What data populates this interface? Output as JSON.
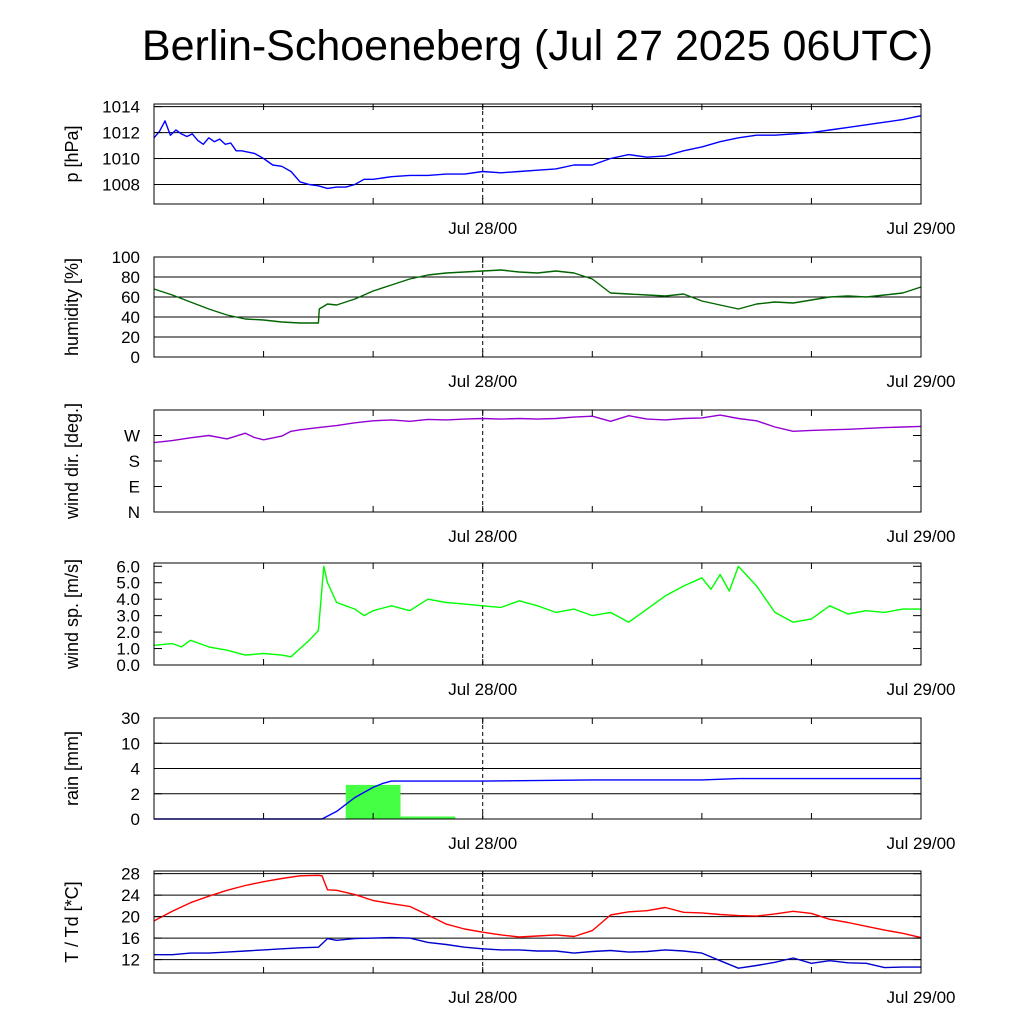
{
  "title": "Berlin-Schoeneberg (Jul 27 2025 06UTC)",
  "x_axis": {
    "start": "Jul 27 06UTC",
    "end": "Jul 29 00UTC",
    "tick_labels": [
      {
        "label": "Jul 28/00",
        "hour": 18
      },
      {
        "label": "Jul 29/00",
        "hour": 42
      }
    ],
    "reference_line_hour": 18
  },
  "colors": {
    "pressure": "#0000ff",
    "humidity": "#006400",
    "wind_dir": "#9400d3",
    "wind_speed": "#00ff00",
    "rain_bar": "#44ff44",
    "rain_cumulative": "#0000ff",
    "temperature": "#ff0000",
    "dewpoint": "#0000cc"
  },
  "chart_data": [
    {
      "type": "line",
      "id": "pressure",
      "ylabel": "p [hPa]",
      "ylim": [
        1006.5,
        1014.2
      ],
      "yticks": [
        1008,
        1010,
        1012,
        1014
      ],
      "ytick_labels": [
        "1008",
        "1010",
        "1012",
        "1014"
      ],
      "grid": "horizontal",
      "series": [
        {
          "color_key": "pressure",
          "x": [
            0,
            0.3,
            0.6,
            0.9,
            1.2,
            1.5,
            1.8,
            2.1,
            2.4,
            2.7,
            3.0,
            3.3,
            3.6,
            3.9,
            4.2,
            4.5,
            4.8,
            5.5,
            6,
            6.5,
            7,
            7.5,
            8,
            8.5,
            9,
            9.5,
            10,
            10.5,
            11,
            11.5,
            12,
            12.5,
            13,
            14,
            15,
            16,
            17,
            18,
            19,
            20,
            21,
            22,
            23,
            24,
            25,
            26,
            27,
            28,
            29,
            30,
            31,
            32,
            33,
            34,
            35,
            36,
            37,
            38,
            39,
            40,
            41,
            42
          ],
          "y": [
            1011.6,
            1012.1,
            1012.9,
            1011.8,
            1012.2,
            1011.9,
            1011.7,
            1011.9,
            1011.4,
            1011.1,
            1011.6,
            1011.3,
            1011.5,
            1011.1,
            1011.2,
            1010.6,
            1010.6,
            1010.4,
            1010.0,
            1009.5,
            1009.4,
            1009.0,
            1008.2,
            1008.0,
            1007.9,
            1007.7,
            1007.8,
            1007.8,
            1008.0,
            1008.4,
            1008.4,
            1008.5,
            1008.6,
            1008.7,
            1008.7,
            1008.8,
            1008.8,
            1009.0,
            1008.9,
            1009.0,
            1009.1,
            1009.2,
            1009.5,
            1009.5,
            1010.0,
            1010.3,
            1010.1,
            1010.2,
            1010.6,
            1010.9,
            1011.3,
            1011.6,
            1011.8,
            1011.8,
            1011.9,
            1012.0,
            1012.2,
            1012.4,
            1012.6,
            1012.8,
            1013.0,
            1013.3
          ]
        }
      ]
    },
    {
      "type": "line",
      "id": "humidity",
      "ylabel": "humidity [%]",
      "ylim": [
        0,
        100
      ],
      "yticks": [
        0,
        20,
        40,
        60,
        80,
        100
      ],
      "ytick_labels": [
        "0",
        "20",
        "40",
        "60",
        "80",
        "100"
      ],
      "grid": "horizontal",
      "series": [
        {
          "color_key": "humidity",
          "x": [
            0,
            1,
            2,
            3,
            4,
            5,
            6,
            7,
            8,
            8.5,
            9,
            9.05,
            9.5,
            10,
            11,
            12,
            13,
            14,
            15,
            16,
            17,
            18,
            19,
            20,
            21,
            22,
            23,
            24,
            25,
            26,
            27,
            28,
            29,
            30,
            31,
            32,
            33,
            34,
            35,
            36,
            37,
            38,
            39,
            40,
            41,
            42
          ],
          "y": [
            68,
            62,
            55,
            48,
            42,
            38,
            37,
            35,
            34,
            34,
            34,
            48,
            53,
            52,
            58,
            66,
            72,
            78,
            82,
            84,
            85,
            86,
            87,
            85,
            84,
            86,
            84,
            78,
            64,
            63,
            62,
            61,
            63,
            56,
            52,
            48,
            53,
            55,
            54,
            57,
            60,
            61,
            60,
            62,
            64,
            70
          ]
        }
      ]
    },
    {
      "type": "line",
      "id": "wind_dir",
      "ylabel": "wind dir. [deg.]",
      "ylim": [
        0,
        360
      ],
      "yticks": [
        0,
        90,
        180,
        270
      ],
      "ytick_labels": [
        "N",
        "E",
        "S",
        "W"
      ],
      "grid": "none",
      "series": [
        {
          "color_key": "wind_dir",
          "x": [
            0,
            1,
            2,
            3,
            4,
            5,
            5.5,
            6,
            7,
            7.5,
            8,
            9,
            10,
            11,
            12,
            13,
            14,
            15,
            16,
            17,
            18,
            19,
            20,
            21,
            22,
            23,
            24,
            25,
            26,
            27,
            28,
            29,
            30,
            31,
            32,
            33,
            34,
            35,
            36,
            37,
            38,
            39,
            40,
            41,
            42
          ],
          "y": [
            245,
            252,
            262,
            270,
            258,
            278,
            263,
            255,
            268,
            285,
            290,
            298,
            305,
            315,
            322,
            325,
            320,
            327,
            325,
            328,
            330,
            328,
            330,
            328,
            330,
            335,
            338,
            320,
            340,
            328,
            325,
            330,
            332,
            342,
            330,
            322,
            300,
            285,
            288,
            290,
            292,
            295,
            298,
            300,
            302
          ]
        }
      ]
    },
    {
      "type": "line",
      "id": "wind_speed",
      "ylabel": "wind sp. [m/s]",
      "ylim": [
        0,
        6.2
      ],
      "yticks": [
        0,
        1,
        2,
        3,
        4,
        5,
        6
      ],
      "ytick_labels": [
        "0.0",
        "1.0",
        "2.0",
        "3.0",
        "4.0",
        "5.0",
        "6.0"
      ],
      "grid": "none",
      "series": [
        {
          "color_key": "wind_speed",
          "x": [
            0,
            1,
            1.5,
            2,
            2.5,
            3,
            4,
            5,
            6,
            7,
            7.5,
            8,
            8.5,
            9,
            9.3,
            9.5,
            10,
            10.5,
            11,
            11.5,
            12,
            13,
            14,
            15,
            16,
            17,
            18,
            19,
            20,
            21,
            22,
            23,
            24,
            25,
            26,
            27,
            28,
            29,
            30,
            30.5,
            31,
            31.5,
            32,
            33,
            34,
            35,
            36,
            37,
            38,
            39,
            40,
            41,
            42
          ],
          "y": [
            1.2,
            1.3,
            1.1,
            1.5,
            1.3,
            1.1,
            0.9,
            0.6,
            0.7,
            0.6,
            0.5,
            1.0,
            1.5,
            2.1,
            6.0,
            5.0,
            3.8,
            3.6,
            3.4,
            3.0,
            3.3,
            3.6,
            3.3,
            4.0,
            3.8,
            3.7,
            3.6,
            3.5,
            3.9,
            3.6,
            3.2,
            3.4,
            3.0,
            3.2,
            2.6,
            3.4,
            4.2,
            4.8,
            5.3,
            4.6,
            5.5,
            4.5,
            6.0,
            4.8,
            3.2,
            2.6,
            2.8,
            3.6,
            3.1,
            3.3,
            3.2,
            3.4,
            3.4
          ]
        }
      ]
    },
    {
      "type": "bar+line",
      "id": "rain",
      "ylabel": "rain [mm]",
      "scale": "piecewise",
      "yticks": [
        0,
        2,
        4,
        10,
        30
      ],
      "ytick_labels": [
        "0",
        "2",
        "4",
        "10",
        "30"
      ],
      "grid": "horizontal",
      "bars": [
        {
          "x_start": 10.5,
          "x_end": 13.5,
          "value": 2.7
        },
        {
          "x_start": 13.5,
          "x_end": 16.5,
          "value": 0.2
        }
      ],
      "series": [
        {
          "color_key": "rain_cumulative",
          "x": [
            0,
            9.2,
            10,
            11,
            12,
            12.5,
            13,
            15,
            18,
            24,
            30,
            32,
            36,
            42
          ],
          "y": [
            0,
            0,
            0.6,
            1.7,
            2.5,
            2.8,
            3.0,
            3.0,
            3.0,
            3.1,
            3.1,
            3.2,
            3.2,
            3.2
          ]
        }
      ]
    },
    {
      "type": "line",
      "id": "temperature",
      "ylabel": "T / Td [*C]",
      "ylim": [
        9.5,
        28.5
      ],
      "yticks": [
        12,
        16,
        20,
        24,
        28
      ],
      "ytick_labels": [
        "12",
        "16",
        "20",
        "24",
        "28"
      ],
      "grid": "horizontal",
      "series": [
        {
          "color_key": "temperature",
          "x": [
            0,
            1,
            2,
            3,
            4,
            5,
            6,
            7,
            8,
            9,
            9.2,
            9.5,
            10,
            11,
            12,
            13,
            14,
            15,
            16,
            17,
            18,
            19,
            20,
            21,
            22,
            23,
            24,
            25,
            26,
            27,
            28,
            29,
            30,
            31,
            32,
            33,
            34,
            35,
            36,
            37,
            38,
            39,
            40,
            41,
            42
          ],
          "y": [
            19.2,
            21.0,
            22.6,
            23.8,
            24.9,
            25.8,
            26.5,
            27.1,
            27.6,
            27.7,
            27.6,
            25.0,
            24.9,
            24.1,
            23.0,
            22.4,
            21.9,
            20.3,
            18.6,
            17.7,
            17.1,
            16.6,
            16.2,
            16.4,
            16.6,
            16.3,
            17.4,
            20.3,
            20.9,
            21.1,
            21.7,
            20.8,
            20.7,
            20.4,
            20.2,
            20.1,
            20.5,
            21.0,
            20.6,
            19.5,
            18.9,
            18.2,
            17.5,
            16.9,
            16.1
          ]
        },
        {
          "color_key": "dewpoint",
          "x": [
            0,
            1,
            2,
            3,
            4,
            5,
            6,
            7,
            8,
            9,
            9.5,
            10,
            11,
            12,
            13,
            14,
            15,
            16,
            17,
            18,
            19,
            20,
            21,
            22,
            23,
            24,
            25,
            26,
            27,
            28,
            29,
            30,
            31,
            32,
            33,
            34,
            35,
            36,
            37,
            38,
            39,
            40,
            41,
            42
          ],
          "y": [
            12.9,
            12.9,
            13.2,
            13.2,
            13.4,
            13.6,
            13.8,
            14.0,
            14.2,
            14.3,
            15.9,
            15.6,
            15.9,
            16.0,
            16.1,
            16.0,
            15.2,
            14.8,
            14.3,
            14.0,
            13.8,
            13.8,
            13.6,
            13.6,
            13.2,
            13.5,
            13.7,
            13.4,
            13.5,
            13.8,
            13.6,
            13.2,
            11.8,
            10.4,
            10.9,
            11.5,
            12.3,
            11.3,
            11.8,
            11.4,
            11.3,
            10.5,
            10.6,
            10.6
          ]
        }
      ]
    }
  ]
}
